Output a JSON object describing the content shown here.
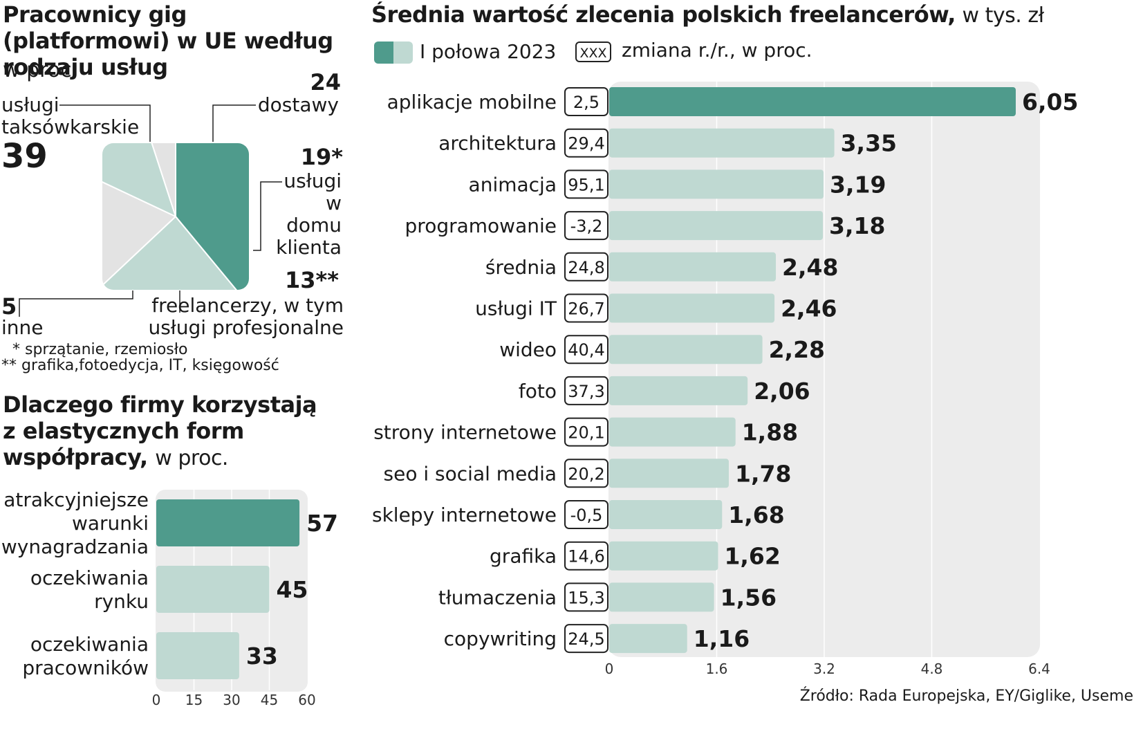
{
  "chart_data": [
    {
      "type": "pie",
      "title": "Pracownicy gig (platformowi) w UE według rodzaju usług",
      "unit": "w proc.",
      "slices": [
        {
          "label": "usługi taksówkarskie",
          "value": 39,
          "value_label": "39",
          "color": "#4f9b8c"
        },
        {
          "label": "dostawy",
          "value": 24,
          "value_label": "24",
          "color": "#bfd9d2"
        },
        {
          "label": "usługi w domu klienta",
          "value": 19,
          "value_label": "19*",
          "color": "#e3e3e3"
        },
        {
          "label": "freelancerzy, w tym usługi profesjonalne",
          "value": 13,
          "value_label": "13**",
          "color": "#bfd9d2"
        },
        {
          "label": "inne",
          "value": 5,
          "value_label": "5",
          "color": "#e3e3e3"
        }
      ],
      "notes": [
        "* sprzątanie, rzemiosło",
        "** grafika,fotoedycja, IT, księgowość"
      ]
    },
    {
      "type": "bar",
      "orientation": "horizontal",
      "title": "Dlaczego firmy korzystają z elastycznych form współpracy,",
      "unit": "w proc.",
      "categories": [
        [
          "atrakcyjniejsze",
          "warunki",
          "wynagradzania"
        ],
        [
          "oczekiwania",
          "rynku"
        ],
        [
          "oczekiwania",
          "pracowników"
        ]
      ],
      "values": [
        57,
        45,
        33
      ],
      "xlim": [
        0,
        60
      ],
      "ticks": [
        0,
        15,
        30,
        45,
        60
      ]
    },
    {
      "type": "bar",
      "orientation": "horizontal",
      "title": "Średnia wartość zlecenia polskich freelancerów,",
      "unit": "w tys. zł",
      "legend": [
        {
          "label": "I połowa 2023"
        },
        {
          "box": "XXX",
          "label": "zmiana r./r., w proc."
        }
      ],
      "categories": [
        "aplikacje mobilne",
        "architektura",
        "animacja",
        "programowanie",
        "średnia",
        "usługi IT",
        "wideo",
        "foto",
        "strony internetowe",
        "seo i social media",
        "sklepy internetowe",
        "grafika",
        "tłumaczenia",
        "copywriting"
      ],
      "values": [
        6.05,
        3.35,
        3.19,
        3.18,
        2.48,
        2.46,
        2.28,
        2.06,
        1.88,
        1.78,
        1.68,
        1.62,
        1.56,
        1.16
      ],
      "value_labels": [
        "6,05",
        "3,35",
        "3,19",
        "3,18",
        "2,48",
        "2,46",
        "2,28",
        "2,06",
        "1,88",
        "1,78",
        "1,68",
        "1,62",
        "1,56",
        "1,16"
      ],
      "change_yoy": [
        "2,5",
        "29,4",
        "95,1",
        "-3,2",
        "24,8",
        "26,7",
        "40,4",
        "37,3",
        "20,1",
        "20,2",
        "-0,5",
        "14,6",
        "15,3",
        "24,5"
      ],
      "xlim": [
        0,
        6.4
      ],
      "ticks": [
        "0",
        "1.6",
        "3.2",
        "4.8",
        "6.4"
      ],
      "grid": true
    }
  ],
  "source": "Źródło: Rada Europejska, EY/Giglike, Useme",
  "colors": {
    "dark": "#4f9b8c",
    "light": "#bfd9d2",
    "grey": "#e3e3e3",
    "panel": "#ececec"
  }
}
